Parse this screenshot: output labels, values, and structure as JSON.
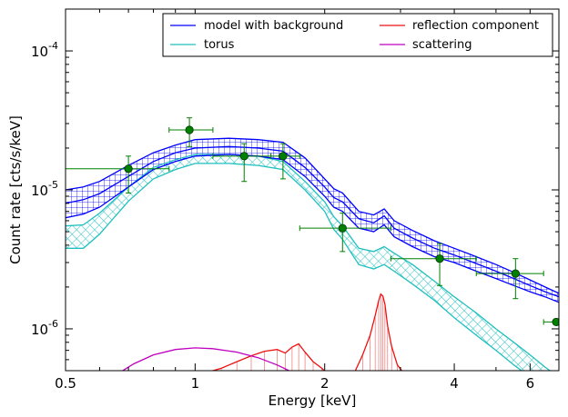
{
  "chart_data": {
    "type": "line",
    "xlabel": "Energy [keV]",
    "ylabel": "Count rate [cts/s/keV]",
    "xscale": "log",
    "yscale": "log",
    "xlim": [
      0.5,
      7.0
    ],
    "ylim": [
      5e-07,
      0.0002
    ],
    "x_ticks": [
      {
        "value": 0.5,
        "label": "0.5"
      },
      {
        "value": 1,
        "label": "1"
      },
      {
        "value": 2,
        "label": "2"
      },
      {
        "value": 4,
        "label": "4"
      },
      {
        "value": 6,
        "label": "6"
      }
    ],
    "y_ticks": [
      {
        "value": 1e-06,
        "base": "10",
        "exp": "-6"
      },
      {
        "value": 1e-05,
        "base": "10",
        "exp": "-5"
      },
      {
        "value": 0.0001,
        "base": "10",
        "exp": "-4"
      }
    ],
    "legend": {
      "placement": "top-right",
      "columns": 2,
      "entries": [
        {
          "label": "model with background",
          "color": "#0000ff"
        },
        {
          "label": "reflection component",
          "color": "#ee1111"
        },
        {
          "label": "torus",
          "color": "#20bfbf"
        },
        {
          "label": "scattering",
          "color": "#bf00bf"
        }
      ]
    },
    "series": [
      {
        "name": "model with background",
        "color": "#0000ff",
        "x": [
          0.5,
          0.55,
          0.6,
          0.7,
          0.8,
          0.9,
          1.0,
          1.2,
          1.4,
          1.6,
          1.8,
          2.0,
          2.1,
          2.2,
          2.4,
          2.6,
          2.75,
          2.9,
          3.2,
          3.6,
          4.0,
          4.5,
          5.0,
          5.5,
          6.0,
          6.5,
          7.0
        ],
        "low": [
          6.3e-06,
          6.7e-06,
          7.5e-06,
          1.05e-05,
          1.4e-05,
          1.6e-05,
          1.75e-05,
          1.8e-05,
          1.75e-05,
          1.65e-05,
          1.25e-05,
          9e-06,
          7.5e-06,
          7e-06,
          5.3e-06,
          5e-06,
          5.6e-06,
          4.6e-06,
          3.9e-06,
          3.3e-06,
          3e-06,
          2.6e-06,
          2.3e-06,
          2.05e-06,
          1.85e-06,
          1.7e-06,
          1.55e-06
        ],
        "mid": [
          8e-06,
          8.5e-06,
          9.4e-06,
          1.25e-05,
          1.6e-05,
          1.85e-05,
          2e-05,
          2.05e-05,
          2e-05,
          1.9e-05,
          1.45e-05,
          1.05e-05,
          8.8e-06,
          8.2e-06,
          6.2e-06,
          5.8e-06,
          6.5e-06,
          5.3e-06,
          4.5e-06,
          3.8e-06,
          3.4e-06,
          2.95e-06,
          2.6e-06,
          2.3e-06,
          2.05e-06,
          1.85e-06,
          1.7e-06
        ],
        "high": [
          1e-05,
          1.05e-05,
          1.15e-05,
          1.5e-05,
          1.85e-05,
          2.1e-05,
          2.3e-05,
          2.35e-05,
          2.3e-05,
          2.2e-05,
          1.7e-05,
          1.2e-05,
          1.02e-05,
          9.5e-06,
          7e-06,
          6.6e-06,
          7.3e-06,
          6e-06,
          5.1e-06,
          4.3e-06,
          3.8e-06,
          3.3e-06,
          2.9e-06,
          2.55e-06,
          2.25e-06,
          2e-06,
          1.8e-06
        ]
      },
      {
        "name": "torus",
        "color": "#20bfbf",
        "x": [
          0.5,
          0.55,
          0.6,
          0.7,
          0.8,
          0.9,
          1.0,
          1.2,
          1.4,
          1.6,
          1.8,
          2.0,
          2.1,
          2.2,
          2.4,
          2.6,
          2.75,
          2.9,
          3.2,
          3.6,
          4.0,
          4.5,
          5.0,
          5.5,
          6.0,
          6.5,
          7.0
        ],
        "low": [
          3.8e-06,
          3.8e-06,
          4.8e-06,
          8.3e-06,
          1.2e-05,
          1.4e-05,
          1.55e-05,
          1.55e-05,
          1.5e-05,
          1.4e-05,
          1e-05,
          7e-06,
          5.2e-06,
          4.4e-06,
          2.9e-06,
          2.7e-06,
          2.9e-06,
          2.6e-06,
          2.1e-06,
          1.6e-06,
          1.2e-06,
          9e-07,
          7e-07,
          5.5e-07,
          4.5e-07,
          3.8e-07,
          3.2e-07
        ],
        "high": [
          5.5e-06,
          5.6e-06,
          6.8e-06,
          1.05e-05,
          1.45e-05,
          1.65e-05,
          1.8e-05,
          1.8e-05,
          1.75e-05,
          1.6e-05,
          1.15e-05,
          8.2e-06,
          6.4e-06,
          5.5e-06,
          3.8e-06,
          3.6e-06,
          3.9e-06,
          3.5e-06,
          2.9e-06,
          2.2e-06,
          1.7e-06,
          1.3e-06,
          1e-06,
          8e-07,
          6.5e-07,
          5.3e-07,
          4.5e-07
        ]
      },
      {
        "name": "reflection component",
        "color": "#ee1111",
        "x": [
          1.05,
          1.15,
          1.25,
          1.35,
          1.45,
          1.55,
          1.62,
          1.68,
          1.74,
          1.8,
          1.88,
          1.97,
          2.05,
          2.15,
          2.25,
          2.35,
          2.45,
          2.55,
          2.62,
          2.67,
          2.7,
          2.73,
          2.76,
          2.8,
          2.86,
          2.95,
          3.1,
          3.3
        ],
        "y": [
          4.8e-07,
          5.2e-07,
          5.8e-07,
          6.4e-07,
          6.9e-07,
          7.1e-07,
          6.7e-07,
          7.4e-07,
          7.8e-07,
          6.8e-07,
          5.8e-07,
          5.2e-07,
          4.6e-07,
          4.4e-07,
          4.5e-07,
          4.9e-07,
          6.5e-07,
          9e-07,
          1.25e-06,
          1.6e-06,
          1.78e-06,
          1.72e-06,
          1.5e-06,
          1.05e-06,
          7.5e-07,
          5.5e-07,
          4.5e-07,
          4e-07
        ]
      },
      {
        "name": "scattering",
        "color": "#bf00bf",
        "x": [
          0.65,
          0.72,
          0.8,
          0.9,
          1.0,
          1.1,
          1.25,
          1.4,
          1.55,
          1.7
        ],
        "y": [
          4.6e-07,
          5.6e-07,
          6.5e-07,
          7.1e-07,
          7.3e-07,
          7.2e-07,
          6.8e-07,
          6.2e-07,
          5.5e-07,
          4.8e-07
        ]
      }
    ],
    "data_points": {
      "color": "#008000",
      "points": [
        {
          "x": 0.7,
          "y": 1.42e-05,
          "xlo": 0.5,
          "xhi": 0.87,
          "ylo": 9.5e-06,
          "yhi": 1.75e-05
        },
        {
          "x": 0.97,
          "y": 2.7e-05,
          "xlo": 0.87,
          "xhi": 1.1,
          "ylo": 2.05e-05,
          "yhi": 3.3e-05
        },
        {
          "x": 1.3,
          "y": 1.75e-05,
          "xlo": 1.1,
          "xhi": 1.5,
          "ylo": 1.15e-05,
          "yhi": 2.15e-05
        },
        {
          "x": 1.6,
          "y": 1.75e-05,
          "xlo": 1.5,
          "xhi": 1.75,
          "ylo": 1.2e-05,
          "yhi": 2.15e-05
        },
        {
          "x": 2.2,
          "y": 5.3e-06,
          "xlo": 1.75,
          "xhi": 2.85,
          "ylo": 3.6e-06,
          "yhi": 6.8e-06
        },
        {
          "x": 3.7,
          "y": 3.2e-06,
          "xlo": 2.85,
          "xhi": 4.5,
          "ylo": 2.05e-06,
          "yhi": 4.1e-06
        },
        {
          "x": 5.55,
          "y": 2.5e-06,
          "xlo": 4.5,
          "xhi": 6.45,
          "ylo": 1.65e-06,
          "yhi": 3.2e-06
        },
        {
          "x": 6.9,
          "y": 1.12e-06,
          "xlo": 6.45,
          "xhi": 7.0,
          "ylo": 1.12e-06,
          "yhi": 1.12e-06
        }
      ]
    }
  }
}
